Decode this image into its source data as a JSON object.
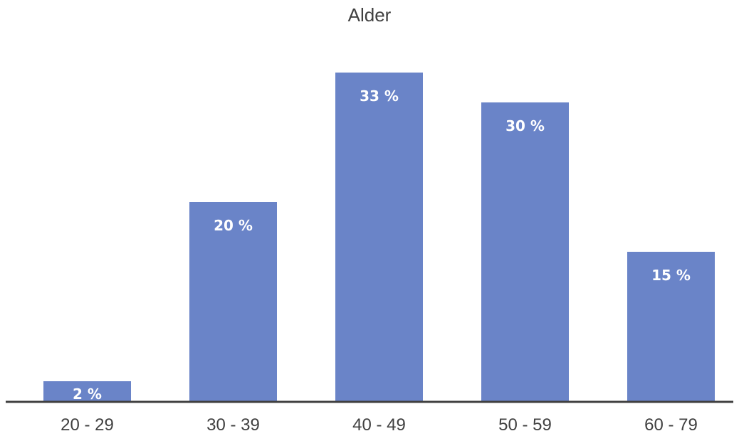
{
  "chart_data": {
    "type": "bar",
    "title": "Alder",
    "categories": [
      "20 - 29",
      "30 - 39",
      "40 - 49",
      "50 - 59",
      "60 - 79"
    ],
    "values": [
      2,
      20,
      33,
      30,
      15
    ],
    "data_labels": [
      "2 %",
      "20 %",
      "33 %",
      "30 %",
      "15 %"
    ],
    "unit": "%",
    "xlabel": "",
    "ylabel": "",
    "ylim": [
      0,
      33
    ],
    "grid": false,
    "legend": "none",
    "bar_color": "#6a84c8",
    "axis_color": "#404040"
  }
}
